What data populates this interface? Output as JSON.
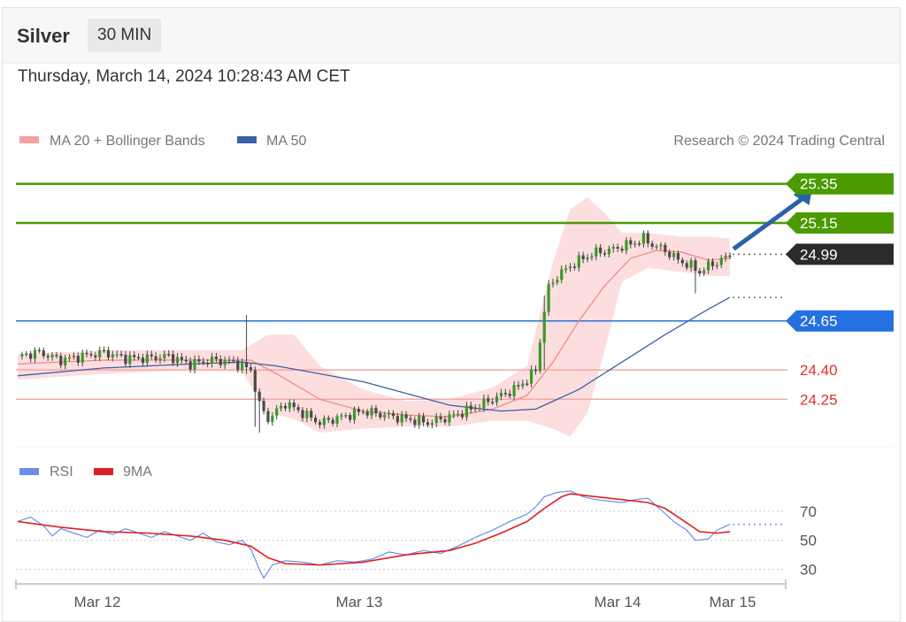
{
  "header": {
    "instrument": "Silver",
    "timeframe": "30 MIN",
    "datetime": "Thursday, March 14, 2024 10:28:43 AM CET"
  },
  "legend": {
    "ma20": "MA 20 + Bollinger Bands",
    "ma50": "MA 50",
    "credit": "Research © 2024 Trading Central",
    "rsi": "RSI",
    "rsi_ma": "9MA"
  },
  "colors": {
    "target": "#4a9a00",
    "pivot": "#2470e0",
    "support": "#e84848",
    "current": "#2b2b2b",
    "ma20": "#f08a8a",
    "ma50": "#3b5fa8",
    "rsi": "#6b8ee8",
    "rsi_ma": "#e02020",
    "arrow": "#2a64a8"
  },
  "chart_data": [
    {
      "type": "candlestick",
      "ylim": [
        24.03,
        25.43
      ],
      "x_ticks": [
        "Mar 12",
        "Mar 13",
        "Mar 14",
        "Mar 15"
      ],
      "levels": [
        {
          "value": 25.35,
          "label": "25.35",
          "kind": "target"
        },
        {
          "value": 25.15,
          "label": "25.15",
          "kind": "target"
        },
        {
          "value": 24.99,
          "label": "24.99",
          "kind": "current"
        },
        {
          "value": 24.65,
          "label": "24.65",
          "kind": "pivot"
        },
        {
          "value": 24.4,
          "label": "24.40",
          "kind": "support"
        },
        {
          "value": 24.25,
          "label": "24.25",
          "kind": "support"
        }
      ],
      "close_path": [
        [
          0,
          24.47
        ],
        [
          5,
          24.49
        ],
        [
          10,
          24.45
        ],
        [
          15,
          24.47
        ],
        [
          20,
          24.49
        ],
        [
          25,
          24.46
        ],
        [
          30,
          24.46
        ],
        [
          35,
          24.47
        ],
        [
          40,
          24.43
        ],
        [
          45,
          24.45
        ],
        [
          50,
          24.44
        ],
        [
          54,
          24.4
        ],
        [
          56,
          24.22
        ],
        [
          58,
          24.15
        ],
        [
          62,
          24.23
        ],
        [
          66,
          24.18
        ],
        [
          70,
          24.13
        ],
        [
          75,
          24.16
        ],
        [
          80,
          24.19
        ],
        [
          85,
          24.17
        ],
        [
          90,
          24.15
        ],
        [
          95,
          24.13
        ],
        [
          100,
          24.16
        ],
        [
          105,
          24.2
        ],
        [
          110,
          24.25
        ],
        [
          115,
          24.3
        ],
        [
          118,
          24.35
        ],
        [
          120,
          24.4
        ],
        [
          122,
          24.7
        ],
        [
          123,
          24.82
        ],
        [
          125,
          24.88
        ],
        [
          128,
          24.93
        ],
        [
          131,
          24.97
        ],
        [
          134,
          25.0
        ],
        [
          137,
          25.01
        ],
        [
          140,
          25.03
        ],
        [
          143,
          25.05
        ],
        [
          145,
          25.07
        ],
        [
          147,
          25.04
        ],
        [
          150,
          25.01
        ],
        [
          153,
          24.96
        ],
        [
          156,
          24.93
        ],
        [
          158,
          24.9
        ],
        [
          160,
          24.93
        ],
        [
          163,
          24.96
        ],
        [
          165,
          24.99
        ]
      ],
      "spikes": [
        {
          "i": 53,
          "high": 24.68,
          "low": 24.38
        },
        {
          "i": 55,
          "high": 24.32,
          "low": 24.11
        },
        {
          "i": 56,
          "high": 24.26,
          "low": 24.08
        },
        {
          "i": 122,
          "high": 24.78,
          "low": 24.4
        },
        {
          "i": 157,
          "high": 24.9,
          "low": 24.79
        }
      ],
      "ma20": [
        [
          0,
          24.43
        ],
        [
          20,
          24.45
        ],
        [
          40,
          24.45
        ],
        [
          54,
          24.45
        ],
        [
          60,
          24.38
        ],
        [
          70,
          24.25
        ],
        [
          80,
          24.19
        ],
        [
          90,
          24.17
        ],
        [
          100,
          24.16
        ],
        [
          110,
          24.2
        ],
        [
          118,
          24.27
        ],
        [
          124,
          24.44
        ],
        [
          130,
          24.65
        ],
        [
          136,
          24.83
        ],
        [
          142,
          24.97
        ],
        [
          148,
          25.01
        ],
        [
          154,
          25.0
        ],
        [
          160,
          24.96
        ],
        [
          165,
          24.97
        ]
      ],
      "bb_upper": [
        [
          0,
          24.48
        ],
        [
          20,
          24.5
        ],
        [
          40,
          24.5
        ],
        [
          52,
          24.5
        ],
        [
          58,
          24.58
        ],
        [
          64,
          24.58
        ],
        [
          70,
          24.42
        ],
        [
          80,
          24.3
        ],
        [
          90,
          24.24
        ],
        [
          100,
          24.25
        ],
        [
          110,
          24.31
        ],
        [
          118,
          24.42
        ],
        [
          124,
          24.95
        ],
        [
          128,
          25.22
        ],
        [
          132,
          25.28
        ],
        [
          136,
          25.2
        ],
        [
          140,
          25.1
        ],
        [
          146,
          25.1
        ],
        [
          154,
          25.08
        ],
        [
          160,
          25.08
        ],
        [
          165,
          25.07
        ]
      ],
      "bb_lower": [
        [
          0,
          24.35
        ],
        [
          20,
          24.38
        ],
        [
          40,
          24.4
        ],
        [
          52,
          24.39
        ],
        [
          58,
          24.18
        ],
        [
          64,
          24.15
        ],
        [
          70,
          24.08
        ],
        [
          80,
          24.1
        ],
        [
          90,
          24.11
        ],
        [
          100,
          24.11
        ],
        [
          110,
          24.14
        ],
        [
          118,
          24.14
        ],
        [
          124,
          24.1
        ],
        [
          128,
          24.06
        ],
        [
          132,
          24.18
        ],
        [
          136,
          24.5
        ],
        [
          140,
          24.85
        ],
        [
          146,
          24.92
        ],
        [
          154,
          24.9
        ],
        [
          160,
          24.88
        ],
        [
          165,
          24.88
        ]
      ],
      "ma50": [
        [
          0,
          24.37
        ],
        [
          20,
          24.41
        ],
        [
          40,
          24.43
        ],
        [
          52,
          24.44
        ],
        [
          60,
          24.42
        ],
        [
          80,
          24.34
        ],
        [
          100,
          24.22
        ],
        [
          112,
          24.19
        ],
        [
          120,
          24.2
        ],
        [
          130,
          24.3
        ],
        [
          140,
          24.44
        ],
        [
          150,
          24.58
        ],
        [
          160,
          24.71
        ],
        [
          165,
          24.77
        ]
      ],
      "target_arrow": {
        "from": [
          165,
          24.99
        ],
        "to": [
          177,
          25.34
        ]
      }
    },
    {
      "type": "line",
      "yticks": [
        70,
        50,
        30
      ],
      "ylim": [
        20,
        90
      ],
      "series": [
        {
          "name": "RSI",
          "key": "rsi",
          "points": [
            [
              0,
              63
            ],
            [
              3,
              66
            ],
            [
              6,
              60
            ],
            [
              8,
              53
            ],
            [
              10,
              58
            ],
            [
              13,
              55
            ],
            [
              16,
              52
            ],
            [
              19,
              57
            ],
            [
              22,
              54
            ],
            [
              25,
              58
            ],
            [
              28,
              55
            ],
            [
              31,
              52
            ],
            [
              34,
              56
            ],
            [
              37,
              53
            ],
            [
              40,
              50
            ],
            [
              43,
              55
            ],
            [
              46,
              49
            ],
            [
              49,
              47
            ],
            [
              52,
              50
            ],
            [
              54,
              44
            ],
            [
              56,
              30
            ],
            [
              57,
              24
            ],
            [
              59,
              33
            ],
            [
              62,
              36
            ],
            [
              66,
              35
            ],
            [
              70,
              33
            ],
            [
              74,
              36
            ],
            [
              78,
              35
            ],
            [
              82,
              37
            ],
            [
              86,
              42
            ],
            [
              90,
              40
            ],
            [
              94,
              43
            ],
            [
              98,
              41
            ],
            [
              102,
              46
            ],
            [
              106,
              52
            ],
            [
              110,
              57
            ],
            [
              114,
              63
            ],
            [
              118,
              68
            ],
            [
              120,
              73
            ],
            [
              122,
              80
            ],
            [
              125,
              83
            ],
            [
              128,
              84
            ],
            [
              131,
              80
            ],
            [
              134,
              78
            ],
            [
              137,
              77
            ],
            [
              140,
              76
            ],
            [
              143,
              78
            ],
            [
              146,
              79
            ],
            [
              149,
              71
            ],
            [
              152,
              63
            ],
            [
              155,
              57
            ],
            [
              157,
              50
            ],
            [
              160,
              51
            ],
            [
              162,
              57
            ],
            [
              165,
              61
            ]
          ]
        },
        {
          "name": "9MA",
          "key": "rsi_ma",
          "points": [
            [
              0,
              63
            ],
            [
              10,
              59
            ],
            [
              20,
              56
            ],
            [
              30,
              55
            ],
            [
              40,
              53
            ],
            [
              48,
              50
            ],
            [
              54,
              46
            ],
            [
              58,
              38
            ],
            [
              62,
              34
            ],
            [
              70,
              33
            ],
            [
              80,
              35
            ],
            [
              90,
              40
            ],
            [
              100,
              43
            ],
            [
              106,
              48
            ],
            [
              112,
              55
            ],
            [
              118,
              63
            ],
            [
              122,
              72
            ],
            [
              126,
              80
            ],
            [
              128,
              82
            ],
            [
              134,
              80
            ],
            [
              140,
              78
            ],
            [
              146,
              76
            ],
            [
              150,
              72
            ],
            [
              154,
              64
            ],
            [
              158,
              56
            ],
            [
              162,
              55
            ],
            [
              165,
              56
            ]
          ]
        }
      ]
    }
  ]
}
